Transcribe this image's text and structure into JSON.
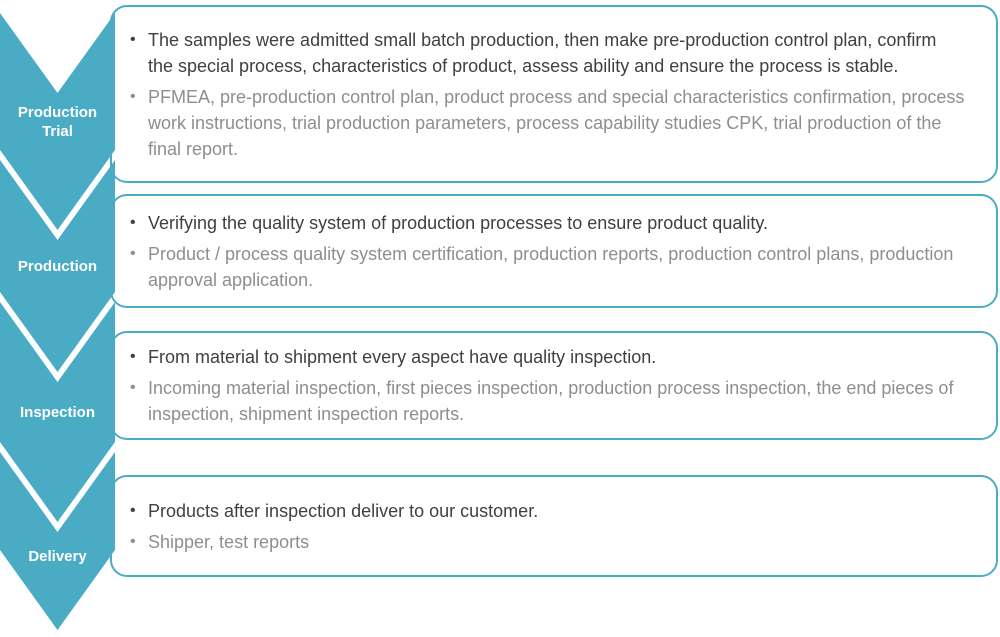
{
  "diagram": {
    "type": "vertical-chevron-process-list",
    "accent_color": "#4bacc6",
    "chevron_fill_color": "#4aabc5",
    "primary_text_color": "#404040",
    "secondary_text_color": "#8e8e8e",
    "label_text_color": "#ffffff",
    "bullet_glyph": "•",
    "stages": [
      {
        "label": "Production Trial",
        "bullets": [
          {
            "text": "The samples were admitted small batch production, then make pre-production control plan, confirm the special process, characteristics of product, assess ability and ensure the process is stable."
          },
          {
            "text": "PFMEA, pre-production control plan, product process and special characteristics confirmation, process work instructions, trial production parameters, process capability studies CPK, trial production of the final report."
          }
        ]
      },
      {
        "label": "Production",
        "bullets": [
          {
            "text": "Verifying the quality system of production processes to ensure product quality."
          },
          {
            "text": "Product / process quality system certification, production reports, production control plans, production approval application."
          }
        ]
      },
      {
        "label": "Inspection",
        "bullets": [
          {
            "text": "From material to shipment every aspect have quality inspection."
          },
          {
            "text": "Incoming material inspection, first pieces inspection, production process inspection, the end pieces of inspection, shipment inspection reports."
          }
        ]
      },
      {
        "label": "Delivery",
        "bullets": [
          {
            "text": "Products after inspection deliver to our customer."
          },
          {
            "text": "Shipper, test reports"
          }
        ]
      }
    ]
  }
}
